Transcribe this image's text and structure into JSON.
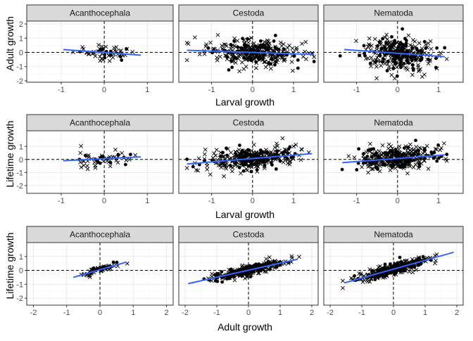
{
  "chart_data": [
    {
      "type": "scatter",
      "row": 1,
      "xlabel": "Larval growth",
      "ylabel": "Adult growth",
      "xlim": [
        -1.8,
        1.6
      ],
      "ylim": [
        -2.1,
        2.2
      ],
      "x_ticks": [
        -1,
        0,
        1
      ],
      "y_ticks": [
        -2,
        -1,
        0,
        1,
        2
      ],
      "grid": true,
      "reference_lines": {
        "x": 0,
        "y": 0
      },
      "marker_legend": "none",
      "panels": [
        {
          "title": "Acanthocephala",
          "x_range": [
            -1.0,
            0.85
          ],
          "n_points": 55,
          "x_sd": 0.35,
          "y_sd": 0.25,
          "fit": {
            "x": [
              -0.95,
              0.85
            ],
            "y": [
              0.2,
              -0.2
            ]
          }
        },
        {
          "title": "Cestoda",
          "x_range": [
            -1.6,
            1.5
          ],
          "n_points": 330,
          "x_sd": 0.55,
          "y_sd": 0.45,
          "fit": {
            "x": [
              -1.6,
              1.5
            ],
            "y": [
              0.15,
              -0.15
            ]
          }
        },
        {
          "title": "Nematoda",
          "x_range": [
            -1.4,
            1.2
          ],
          "n_points": 330,
          "x_sd": 0.45,
          "y_sd": 0.55,
          "fit": {
            "x": [
              -1.3,
              1.15
            ],
            "y": [
              0.2,
              -0.3
            ]
          }
        }
      ]
    },
    {
      "type": "scatter",
      "row": 2,
      "xlabel": "Larval growth",
      "ylabel": "Lifetime growth",
      "xlim": [
        -1.8,
        1.6
      ],
      "ylim": [
        -2.6,
        2.2
      ],
      "x_ticks": [
        -1,
        0,
        1
      ],
      "y_ticks": [
        -2,
        -1,
        0,
        1
      ],
      "grid": true,
      "reference_lines": {
        "x": 0,
        "y": 0
      },
      "panels": [
        {
          "title": "Acanthocephala",
          "x_range": [
            -1.0,
            0.9
          ],
          "n_points": 55,
          "x_sd": 0.35,
          "y_sd": 0.3,
          "fit": {
            "x": [
              -0.95,
              0.85
            ],
            "y": [
              -0.1,
              0.2
            ]
          }
        },
        {
          "title": "Cestoda",
          "x_range": [
            -1.6,
            1.5
          ],
          "n_points": 330,
          "x_sd": 0.55,
          "y_sd": 0.4,
          "fit": {
            "x": [
              -1.6,
              1.45
            ],
            "y": [
              -0.35,
              0.45
            ]
          }
        },
        {
          "title": "Nematoda",
          "x_range": [
            -1.4,
            1.2
          ],
          "n_points": 330,
          "x_sd": 0.45,
          "y_sd": 0.45,
          "fit": {
            "x": [
              -1.35,
              1.15
            ],
            "y": [
              -0.25,
              0.35
            ]
          }
        }
      ]
    },
    {
      "type": "scatter",
      "row": 3,
      "xlabel": "Adult growth",
      "ylabel": "Lifetime growth",
      "xlim": [
        -2.2,
        2.2
      ],
      "ylim": [
        -2.5,
        2.0
      ],
      "x_ticks": [
        -2,
        -1,
        0,
        1,
        2
      ],
      "y_ticks": [
        -2,
        -1,
        0,
        1
      ],
      "grid": true,
      "reference_lines": {
        "x": 0,
        "y": 0
      },
      "panels": [
        {
          "title": "Acanthocephala",
          "x_range": [
            -0.85,
            0.85
          ],
          "n_points": 55,
          "x_sd": 0.3,
          "slope": 0.75,
          "noise": 0.15,
          "fit": {
            "x": [
              -0.8,
              0.8
            ],
            "y": [
              -0.5,
              0.6
            ]
          }
        },
        {
          "title": "Cestoda",
          "x_range": [
            -1.9,
            1.6
          ],
          "n_points": 330,
          "x_sd": 0.55,
          "slope": 0.6,
          "noise": 0.18,
          "fit": {
            "x": [
              -1.9,
              1.55
            ],
            "y": [
              -0.95,
              0.8
            ]
          }
        },
        {
          "title": "Nematoda",
          "x_range": [
            -1.6,
            2.0
          ],
          "n_points": 330,
          "x_sd": 0.55,
          "slope": 0.65,
          "noise": 0.2,
          "fit": {
            "x": [
              -1.55,
              1.9
            ],
            "y": [
              -0.9,
              1.3
            ]
          }
        }
      ]
    }
  ],
  "colors": {
    "strip_fill": "#d9d9d9",
    "strip_border": "#333333",
    "panel_border": "#333333",
    "grid_major": "#ebebeb",
    "grid_minor": "#f5f5f5",
    "fit_line": "#3366ff",
    "points": "#000000",
    "ref_line": "#000000"
  }
}
